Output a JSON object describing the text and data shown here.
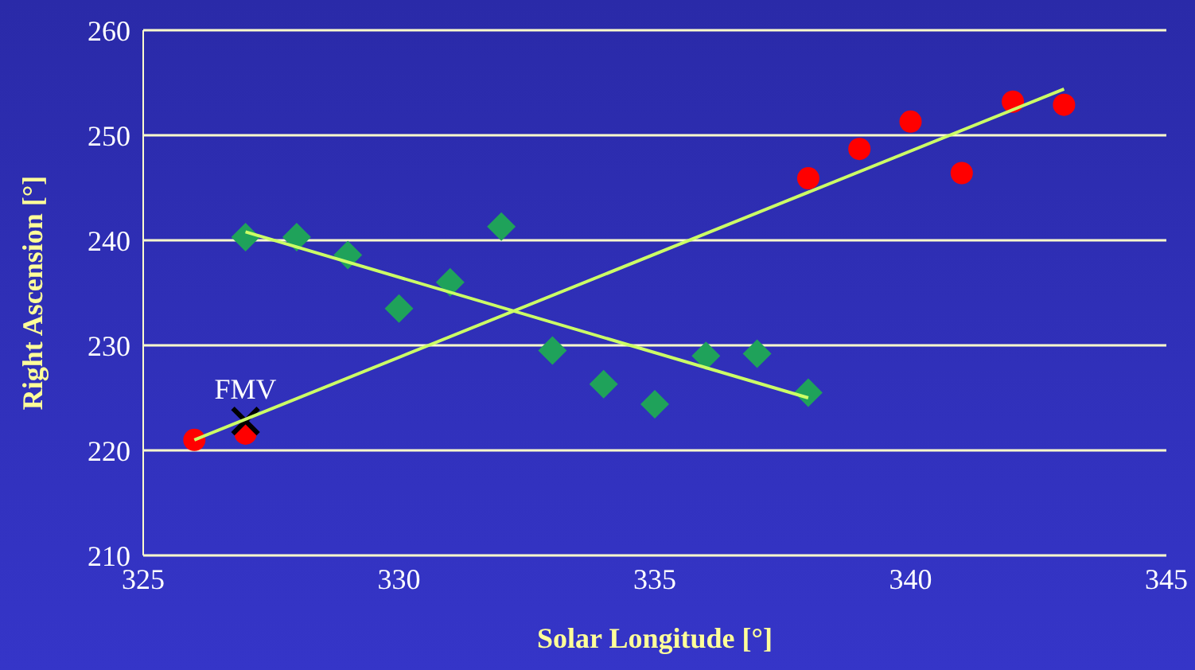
{
  "chart_data": {
    "type": "scatter",
    "xlabel": "Solar Longitude [°]",
    "ylabel": "Right Ascension [°]",
    "xlim": [
      325,
      345
    ],
    "xticks": [
      325,
      330,
      335,
      340,
      345
    ],
    "ylim": [
      210,
      260
    ],
    "yticks": [
      210,
      220,
      230,
      240,
      250,
      260
    ],
    "grid": "y",
    "series": [
      {
        "marker": "circle",
        "color": "#ff0000",
        "x": [
          326,
          327,
          338,
          339,
          340,
          341,
          342,
          343
        ],
        "values": [
          221.0,
          221.6,
          245.9,
          248.7,
          251.3,
          246.4,
          253.2,
          252.9
        ]
      },
      {
        "marker": "diamond",
        "color": "#1fa25a",
        "x": [
          327,
          328,
          329,
          330,
          331,
          332,
          333,
          334,
          335,
          336,
          337,
          338
        ],
        "values": [
          240.3,
          240.3,
          238.6,
          233.5,
          236.0,
          241.3,
          229.5,
          226.3,
          224.4,
          229.0,
          229.2,
          225.5
        ]
      },
      {
        "type": "line",
        "marker": "none",
        "color": "#ccff66",
        "x": [
          326,
          343
        ],
        "values": [
          221.0,
          254.4
        ]
      },
      {
        "type": "line",
        "marker": "none",
        "color": "#ccff66",
        "x": [
          327,
          338
        ],
        "values": [
          240.8,
          225.0
        ]
      },
      {
        "marker": "cross",
        "color": "#000000",
        "x": [
          327
        ],
        "values": [
          222.8
        ]
      }
    ],
    "annotations": [
      {
        "text": "FMV",
        "x": 327,
        "y": 222.8
      }
    ]
  }
}
